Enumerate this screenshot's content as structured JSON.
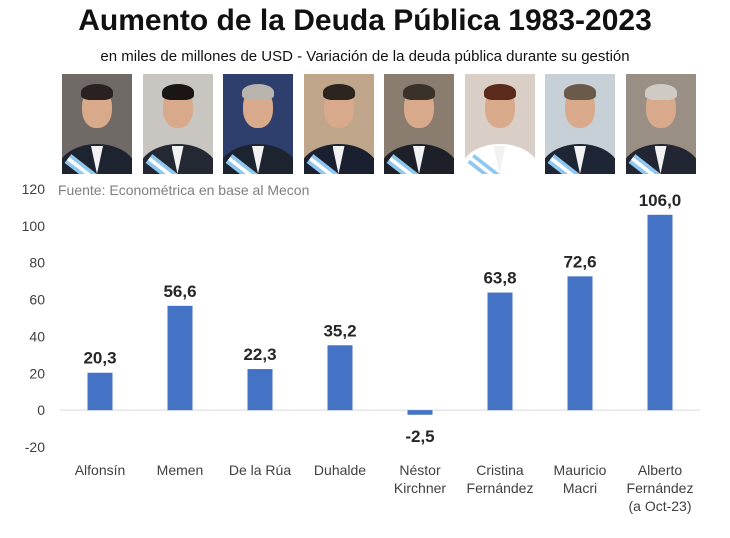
{
  "chart_data": {
    "type": "bar",
    "title": "Aumento de la Deuda Pública 1983-2023",
    "subtitle": "en miles de millones de USD - Variación de la deuda pública durante su gestión",
    "source": "Fuente: Econométrica en base al Mecon",
    "categories": [
      [
        "Alfonsín"
      ],
      [
        "Memen"
      ],
      [
        "De la Rúa"
      ],
      [
        "Duhalde"
      ],
      [
        "Néstor",
        "Kirchner"
      ],
      [
        "Cristina",
        "Fernández"
      ],
      [
        "Mauricio",
        "Macri"
      ],
      [
        "Alberto",
        "Fernández",
        "(a Oct-23)"
      ]
    ],
    "values": [
      20.3,
      56.6,
      22.3,
      35.2,
      -2.5,
      63.8,
      72.6,
      106.0
    ],
    "data_labels": [
      "20,3",
      "56,6",
      "22,3",
      "35,2",
      "-2,5",
      "63,8",
      "72,6",
      "106,0"
    ],
    "ylim": [
      -20,
      120
    ],
    "yticks": [
      -20,
      0,
      20,
      40,
      60,
      80,
      100,
      120
    ],
    "grid": false,
    "legend": "none",
    "bar_color": "#4472c4"
  },
  "portraits": [
    {
      "name": "portrait-alfonsin",
      "bg": "#6f6a66",
      "hair": "#2a2220",
      "suit": "#1e2330"
    },
    {
      "name": "portrait-menem",
      "bg": "#c9c5c0",
      "hair": "#1b1613",
      "suit": "#242833"
    },
    {
      "name": "portrait-de-la-rua",
      "bg": "#2f3f6d",
      "hair": "#b8b3ad",
      "suit": "#1e2330"
    },
    {
      "name": "portrait-duhalde",
      "bg": "#bfa58a",
      "hair": "#2b241f",
      "suit": "#1b2030"
    },
    {
      "name": "portrait-nestor-kirchner",
      "bg": "#8a7c6e",
      "hair": "#3a3129",
      "suit": "#1d2029"
    },
    {
      "name": "portrait-cristina-fernandez",
      "bg": "#d9cfc6",
      "hair": "#5a2b1a",
      "suit": "#ffffff"
    },
    {
      "name": "portrait-mauricio-macri",
      "bg": "#c7cfd7",
      "hair": "#6b5a4a",
      "suit": "#1e2636"
    },
    {
      "name": "portrait-alberto-fernandez",
      "bg": "#9a8f84",
      "hair": "#cfcac4",
      "suit": "#222633"
    }
  ]
}
